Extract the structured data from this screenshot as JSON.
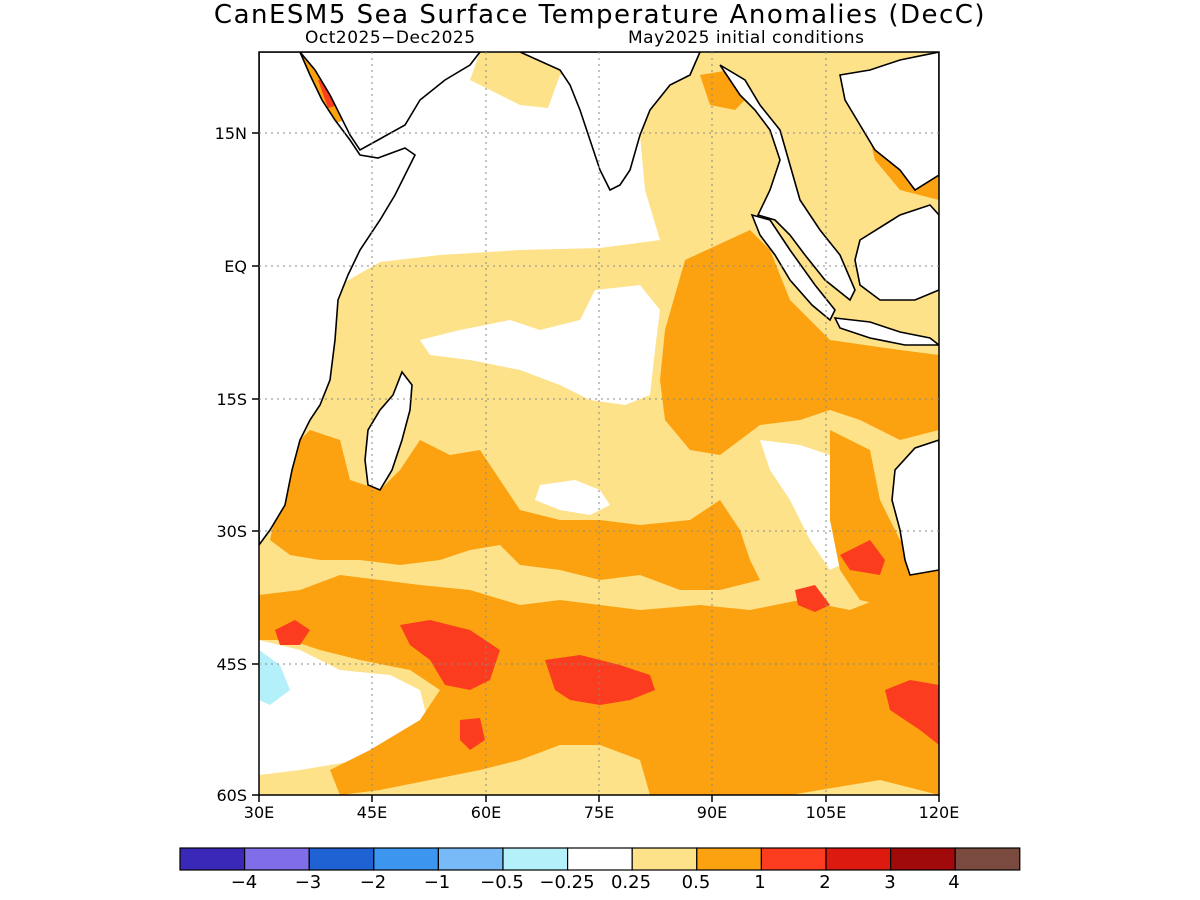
{
  "title": "CanESM5 Sea Surface Temperature Anomalies (DecC)",
  "subtitle_left": "Oct2025−Dec2025",
  "subtitle_right": "May2025 initial conditions",
  "lat_labels": [
    "15N",
    "EQ",
    "15S",
    "30S",
    "45S",
    "60S"
  ],
  "lon_labels": [
    "30E",
    "45E",
    "60E",
    "75E",
    "90E",
    "105E",
    "120E"
  ],
  "colorbar": {
    "colors": [
      "#3a28b8",
      "#7f6ee8",
      "#1e62d4",
      "#3c96f0",
      "#78baf8",
      "#b4f0fa",
      "#ffffff",
      "#fde28a",
      "#fca210",
      "#fc3c1e",
      "#dc1a10",
      "#a00a0a",
      "#7a4a3e"
    ],
    "labels": [
      "−4",
      "−3",
      "−2",
      "−1",
      "−0.5",
      "−0.25",
      "0.25",
      "0.5",
      "1",
      "2",
      "3",
      "4"
    ]
  }
}
